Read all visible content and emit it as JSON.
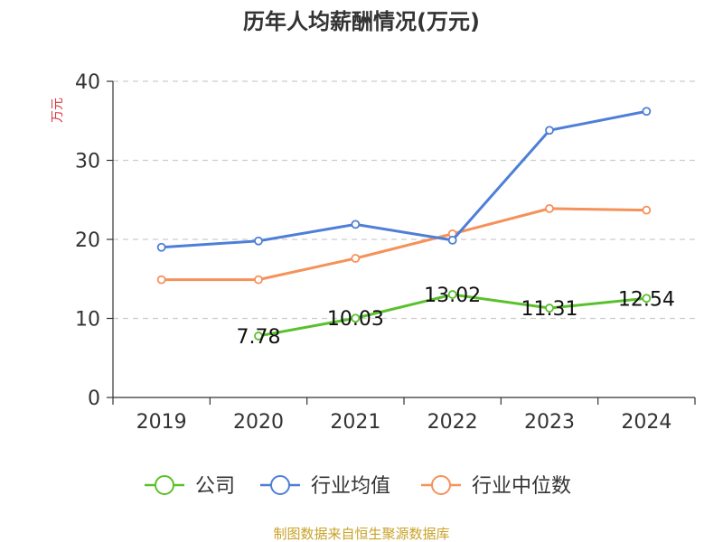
{
  "chart_data": {
    "type": "line",
    "title": "历年人均薪酬情况(万元)",
    "ylabel": "万元",
    "xlabel": "",
    "ylim": [
      0,
      40
    ],
    "yticks": [
      0,
      10,
      20,
      30,
      40
    ],
    "grid": true,
    "legend_position": "bottom",
    "categories": [
      "2019",
      "2020",
      "2021",
      "2022",
      "2023",
      "2024"
    ],
    "series": [
      {
        "name": "公司",
        "color": "#5ac12d",
        "values": [
          null,
          7.78,
          10.03,
          13.02,
          11.31,
          12.54
        ],
        "labels": [
          "",
          "7.78",
          "10.03",
          "13.02",
          "11.31",
          "12.54"
        ]
      },
      {
        "name": "行业均值",
        "color": "#4e7fd7",
        "values": [
          19.0,
          19.8,
          21.9,
          19.9,
          33.8,
          36.2
        ]
      },
      {
        "name": "行业中位数",
        "color": "#f5915a",
        "values": [
          14.9,
          14.9,
          17.6,
          20.7,
          23.9,
          23.7
        ]
      }
    ]
  },
  "footer": {
    "source": "制图数据来自恒生聚源数据库",
    "color": "#c9a227"
  },
  "colors": {
    "ylabel": "#d9363e",
    "axis": "#333333",
    "grid": "#cccccc"
  }
}
